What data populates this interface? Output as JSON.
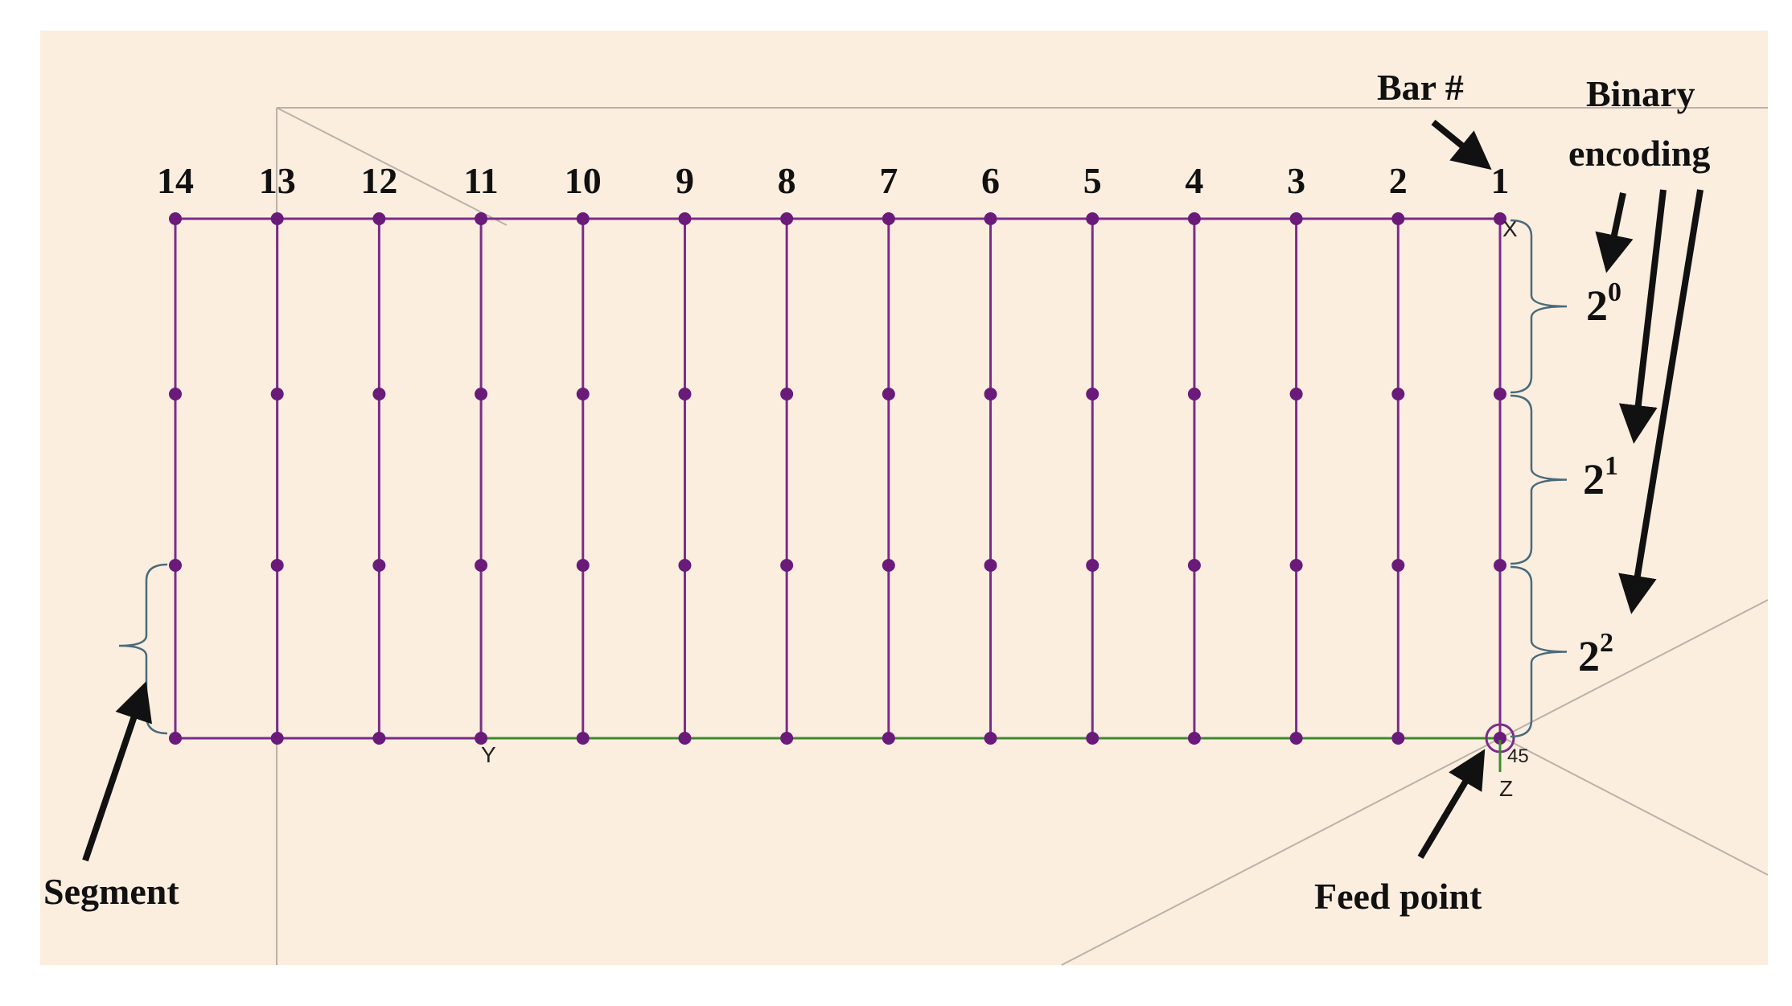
{
  "colors": {
    "background": "#fbeedf",
    "page": "#ffffff",
    "wire": "#7b2c8a",
    "node": "#6a1b7a",
    "ground_wire": "#3c8a2e",
    "guide_line": "#9a9a9a",
    "arrow": "#111111",
    "brace": "#4a6a7a"
  },
  "diagram": {
    "bar_numbers": [
      "14",
      "13",
      "12",
      "11",
      "10",
      "9",
      "8",
      "7",
      "6",
      "5",
      "4",
      "3",
      "2",
      "1"
    ],
    "bar_label": "Bar #",
    "encoding_title_line1": "Binary",
    "encoding_title_line2": "encoding",
    "powers": [
      {
        "base": "2",
        "exp": "0"
      },
      {
        "base": "2",
        "exp": "1"
      },
      {
        "base": "2",
        "exp": "2"
      }
    ],
    "segment_label": "Segment",
    "feed_label": "Feed point",
    "axis_x": "X",
    "axis_y": "Y",
    "axis_z": "Z",
    "feed_id": "45"
  }
}
